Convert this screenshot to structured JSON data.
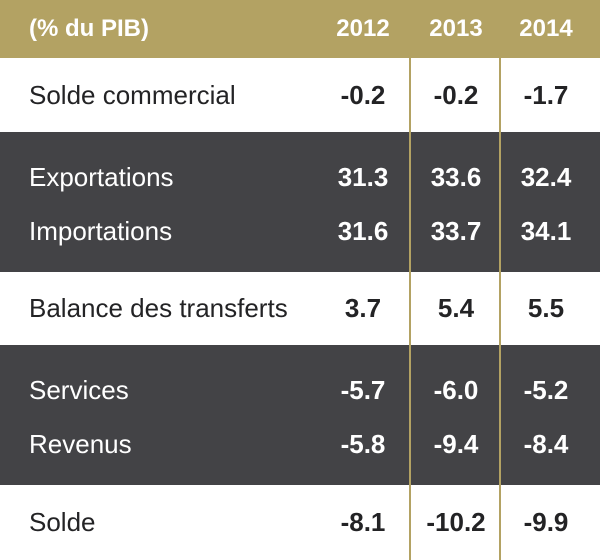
{
  "header": {
    "unit_label": "(% du PIB)",
    "years": [
      "2012",
      "2013",
      "2014"
    ]
  },
  "rows": [
    {
      "label": "Solde commercial",
      "values": [
        "-0.2",
        "-0.2",
        "-1.7"
      ]
    },
    {
      "label": "Exportations",
      "values": [
        "31.3",
        "33.6",
        "32.4"
      ]
    },
    {
      "label": "Importations",
      "values": [
        "31.6",
        "33.7",
        "34.1"
      ]
    },
    {
      "label": "Balance des transferts",
      "values": [
        "3.7",
        "5.4",
        "5.5"
      ]
    },
    {
      "label": "Services",
      "values": [
        "-5.7",
        "-6.0",
        "-5.2"
      ]
    },
    {
      "label": "Revenus",
      "values": [
        "-5.8",
        "-9.4",
        "-8.4"
      ]
    },
    {
      "label": "Solde",
      "values": [
        "-8.1",
        "-10.2",
        "-9.9"
      ]
    }
  ],
  "colors": {
    "header_bg": "#b3a263",
    "dark_band": "#434346",
    "text_dark": "#232325",
    "text_light": "#ffffff"
  }
}
